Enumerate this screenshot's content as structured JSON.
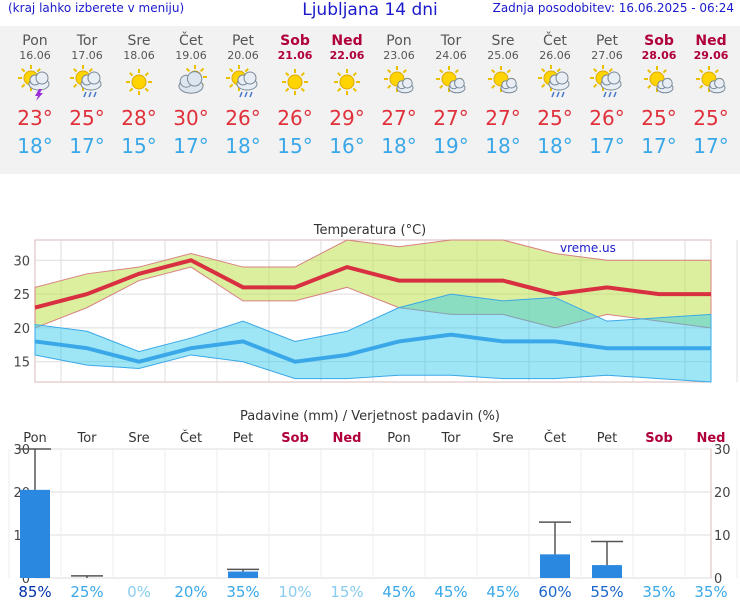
{
  "header": {
    "left_note": "(kraj lahko izberete v meniju)",
    "title": "Ljubljana 14 dni",
    "updated": "Zadnja posodobitev: 16.06.2025 - 06:24"
  },
  "days": [
    {
      "name": "Pon",
      "date": "16.06",
      "weekend": false,
      "icon": "sun-cloud-thunder-icon",
      "max": "23°",
      "min": "18°"
    },
    {
      "name": "Tor",
      "date": "17.06",
      "weekend": false,
      "icon": "sun-cloud-rain-icon",
      "max": "25°",
      "min": "17°"
    },
    {
      "name": "Sre",
      "date": "18.06",
      "weekend": false,
      "icon": "sun-icon",
      "max": "28°",
      "min": "15°"
    },
    {
      "name": "Čet",
      "date": "19.06",
      "weekend": false,
      "icon": "partly-cloudy-icon",
      "max": "30°",
      "min": "17°"
    },
    {
      "name": "Pet",
      "date": "20.06",
      "weekend": false,
      "icon": "sun-cloud-rain-icon",
      "max": "26°",
      "min": "18°"
    },
    {
      "name": "Sob",
      "date": "21.06",
      "weekend": true,
      "icon": "sun-icon",
      "max": "26°",
      "min": "15°"
    },
    {
      "name": "Ned",
      "date": "22.06",
      "weekend": true,
      "icon": "sun-icon",
      "max": "29°",
      "min": "16°"
    },
    {
      "name": "Pon",
      "date": "23.06",
      "weekend": false,
      "icon": "sun-small-cloud-icon",
      "max": "27°",
      "min": "18°"
    },
    {
      "name": "Tor",
      "date": "24.06",
      "weekend": false,
      "icon": "sun-small-cloud-icon",
      "max": "27°",
      "min": "19°"
    },
    {
      "name": "Sre",
      "date": "25.06",
      "weekend": false,
      "icon": "sun-small-cloud-icon",
      "max": "27°",
      "min": "18°"
    },
    {
      "name": "Čet",
      "date": "26.06",
      "weekend": false,
      "icon": "sun-cloud-rain-icon",
      "max": "25°",
      "min": "18°"
    },
    {
      "name": "Pet",
      "date": "27.06",
      "weekend": false,
      "icon": "sun-cloud-rain-icon",
      "max": "26°",
      "min": "17°"
    },
    {
      "name": "Sob",
      "date": "28.06",
      "weekend": true,
      "icon": "sun-small-cloud-icon",
      "max": "25°",
      "min": "17°"
    },
    {
      "name": "Ned",
      "date": "29.06",
      "weekend": true,
      "icon": "sun-small-cloud-icon",
      "max": "25°",
      "min": "17°"
    }
  ],
  "colors": {
    "max": "#e0303a",
    "min": "#3aa8e8",
    "weekend": "#b0003a",
    "precip_bar": "#2b88e0"
  },
  "chart_data": [
    {
      "type": "line",
      "title": "Temperatura (°C)",
      "watermark": "vreme.us",
      "categories": [
        "Pon",
        "Tor",
        "Sre",
        "Čet",
        "Pet",
        "Sob",
        "Ned",
        "Pon",
        "Tor",
        "Sre",
        "Čet",
        "Pet",
        "Sob",
        "Ned"
      ],
      "ylim": [
        12,
        33
      ],
      "yticks": [
        "15",
        "20",
        "25",
        "30"
      ],
      "grid": true,
      "series": [
        {
          "values": [
            23,
            25,
            28,
            30,
            26,
            26,
            29,
            27,
            27,
            27,
            25,
            26,
            25,
            25
          ]
        },
        {
          "values": [
            18,
            17,
            15,
            17,
            18,
            15,
            16,
            18,
            19,
            18,
            18,
            17,
            17,
            17
          ]
        }
      ],
      "ranges": [
        {
          "low": [
            20,
            23,
            27,
            29,
            24,
            24,
            26,
            23,
            22,
            22,
            20,
            22,
            21,
            20
          ],
          "high": [
            26,
            28,
            29,
            31,
            29,
            29,
            33,
            32,
            33,
            33,
            31,
            30,
            30,
            30
          ]
        },
        {
          "low": [
            16,
            14.5,
            14,
            16,
            15,
            12.5,
            12.5,
            13,
            13,
            12.5,
            12.5,
            13,
            12.5,
            12
          ]
        },
        {
          "high": [
            20.5,
            19.5,
            16.5,
            18.5,
            21,
            18,
            19.5,
            23,
            25,
            24,
            24.5,
            21,
            21.5,
            22
          ]
        }
      ]
    },
    {
      "type": "bar",
      "title": "Padavine (mm) / Verjetnost padavin (%)",
      "categories": [
        "Pon",
        "Tor",
        "Sre",
        "Čet",
        "Pet",
        "Sob",
        "Ned",
        "Pon",
        "Tor",
        "Sre",
        "Čet",
        "Pet",
        "Sob",
        "Ned"
      ],
      "ylim": [
        0,
        30
      ],
      "yticks": [
        "0",
        "10",
        "20",
        "30"
      ],
      "values": [
        20.5,
        0,
        0,
        0,
        1.5,
        0,
        0,
        0,
        0,
        0,
        5.5,
        3,
        0,
        0
      ],
      "error_high": [
        30,
        0.5,
        0,
        0,
        2,
        0,
        0,
        0,
        0,
        0,
        13,
        8.5,
        0,
        0
      ],
      "probability": [
        "85%",
        "25%",
        "0%",
        "20%",
        "35%",
        "10%",
        "15%",
        "45%",
        "45%",
        "45%",
        "60%",
        "55%",
        "35%",
        "35%"
      ],
      "probability_values": [
        85,
        25,
        0,
        20,
        35,
        10,
        15,
        45,
        45,
        45,
        60,
        55,
        35,
        35
      ]
    }
  ]
}
